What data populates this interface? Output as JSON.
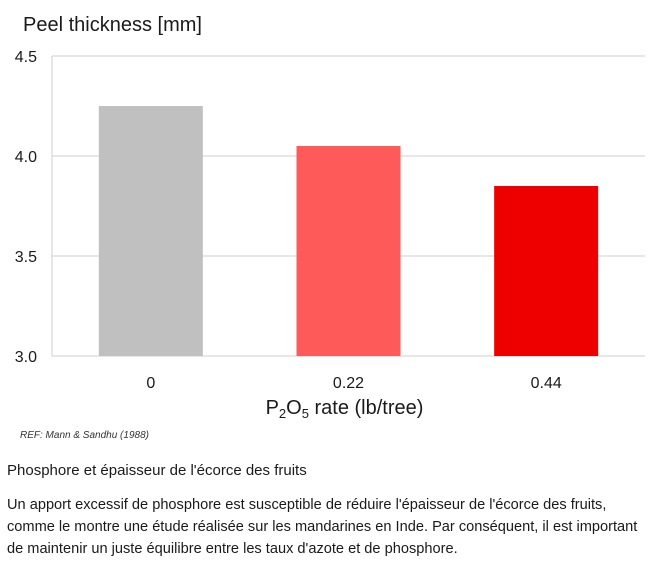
{
  "chart_data": {
    "type": "bar",
    "ylabel": "Peel thickness [mm]",
    "xlabel_prefix": "P",
    "xlabel_sub1": "2",
    "xlabel_mid": "O",
    "xlabel_sub2": "5",
    "xlabel_suffix": " rate (lb/tree)",
    "categories": [
      "0",
      "0.22",
      "0.44"
    ],
    "values": [
      4.25,
      4.05,
      3.85
    ],
    "colors": [
      "#c0c0c0",
      "#ff5a5a",
      "#ee0000"
    ],
    "ylim": [
      3.0,
      4.5
    ],
    "yticks": [
      "3.0",
      "3.5",
      "4.0",
      "4.5"
    ],
    "grid": true
  },
  "reference": "REF: Mann & Sandhu (1988)",
  "caption": {
    "title": "Phosphore et épaisseur de l'écorce des fruits",
    "body": "Un apport excessif de phosphore est susceptible de réduire l'épaisseur de l'écorce des fruits, comme le montre une étude réalisée sur les mandarines en Inde. Par conséquent, il est important de maintenir un juste équilibre entre les taux d'azote et de phosphore."
  }
}
